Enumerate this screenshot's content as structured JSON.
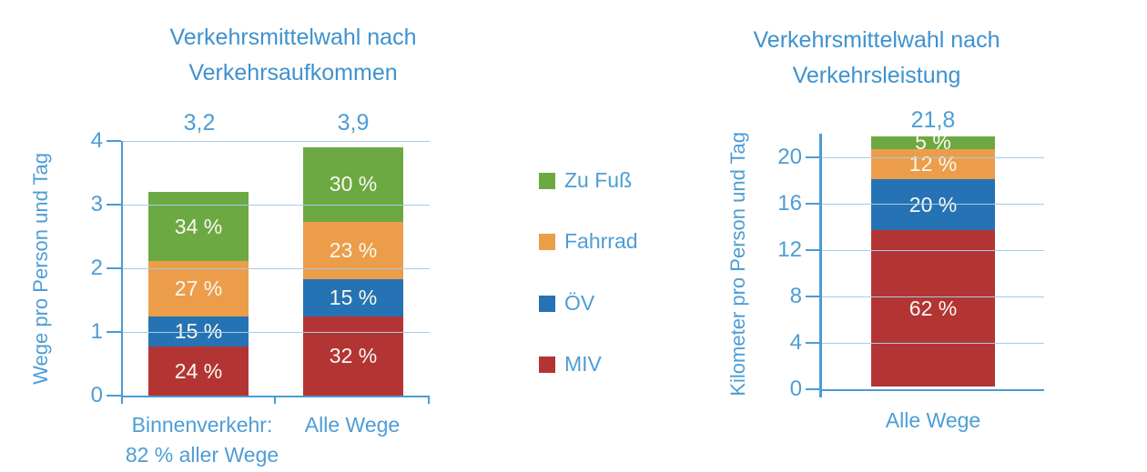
{
  "colors": {
    "zu_fuss": "#6CA943",
    "fahrrad": "#EC9D49",
    "oev": "#2573B4",
    "miv": "#B23534",
    "title_text": "#3E92CE",
    "axis_text": "#4E9DD5",
    "axis_line": "#4A9BD5",
    "gridline": "#A9CBE7",
    "segment_label_text": "#FAF8F1"
  },
  "legend": {
    "items": [
      {
        "key": "zu_fuss",
        "label": "Zu Fuß"
      },
      {
        "key": "fahrrad",
        "label": "Fahrrad"
      },
      {
        "key": "oev",
        "label": "ÖV"
      },
      {
        "key": "miv",
        "label": "MIV"
      }
    ]
  },
  "chart_data": [
    {
      "type": "bar",
      "subtype": "stacked-percent",
      "title_lines": [
        "Verkehrsmittelwahl nach",
        "Verkehrsaufkommen"
      ],
      "ylabel": "Wege pro Person und Tag",
      "ylim": [
        0,
        4
      ],
      "yticks": [
        0,
        1,
        2,
        3,
        4
      ],
      "grid": true,
      "legend_position": "right-of-chart",
      "categories": [
        {
          "label_lines": [
            "Binnenverkehr:",
            "82 % aller Wege"
          ],
          "total": 3.2,
          "total_label": "3,2",
          "segments_top_down": [
            {
              "key": "zu_fuss",
              "name": "Zu Fuß",
              "pct": 34,
              "label": "34 %"
            },
            {
              "key": "fahrrad",
              "name": "Fahrrad",
              "pct": 27,
              "label": "27 %"
            },
            {
              "key": "oev",
              "name": "ÖV",
              "pct": 15,
              "label": "15 %"
            },
            {
              "key": "miv",
              "name": "MIV",
              "pct": 24,
              "label": "24 %"
            }
          ]
        },
        {
          "label_lines": [
            "Alle Wege"
          ],
          "total": 3.9,
          "total_label": "3,9",
          "segments_top_down": [
            {
              "key": "zu_fuss",
              "name": "Zu Fuß",
              "pct": 30,
              "label": "30 %"
            },
            {
              "key": "fahrrad",
              "name": "Fahrrad",
              "pct": 23,
              "label": "23 %"
            },
            {
              "key": "oev",
              "name": "ÖV",
              "pct": 15,
              "label": "15 %"
            },
            {
              "key": "miv",
              "name": "MIV",
              "pct": 32,
              "label": "32 %"
            }
          ]
        }
      ]
    },
    {
      "type": "bar",
      "subtype": "stacked-percent",
      "title_lines": [
        "Verkehrsmittelwahl nach",
        "Verkehrsleistung"
      ],
      "ylabel": "Kilometer pro Person und Tag",
      "ylim": [
        0,
        22
      ],
      "yticks": [
        0,
        4,
        8,
        12,
        16,
        20
      ],
      "grid": true,
      "categories": [
        {
          "label_lines": [
            "Alle Wege"
          ],
          "total": 21.8,
          "total_label": "21,8",
          "segments_top_down": [
            {
              "key": "zu_fuss",
              "name": "Zu Fuß",
              "pct": 5,
              "label": "5 %"
            },
            {
              "key": "fahrrad",
              "name": "Fahrrad",
              "pct": 12,
              "label": "12 %"
            },
            {
              "key": "oev",
              "name": "ÖV",
              "pct": 20,
              "label": "20 %"
            },
            {
              "key": "miv",
              "name": "MIV",
              "pct": 62,
              "label": "62 %"
            }
          ]
        }
      ]
    }
  ]
}
